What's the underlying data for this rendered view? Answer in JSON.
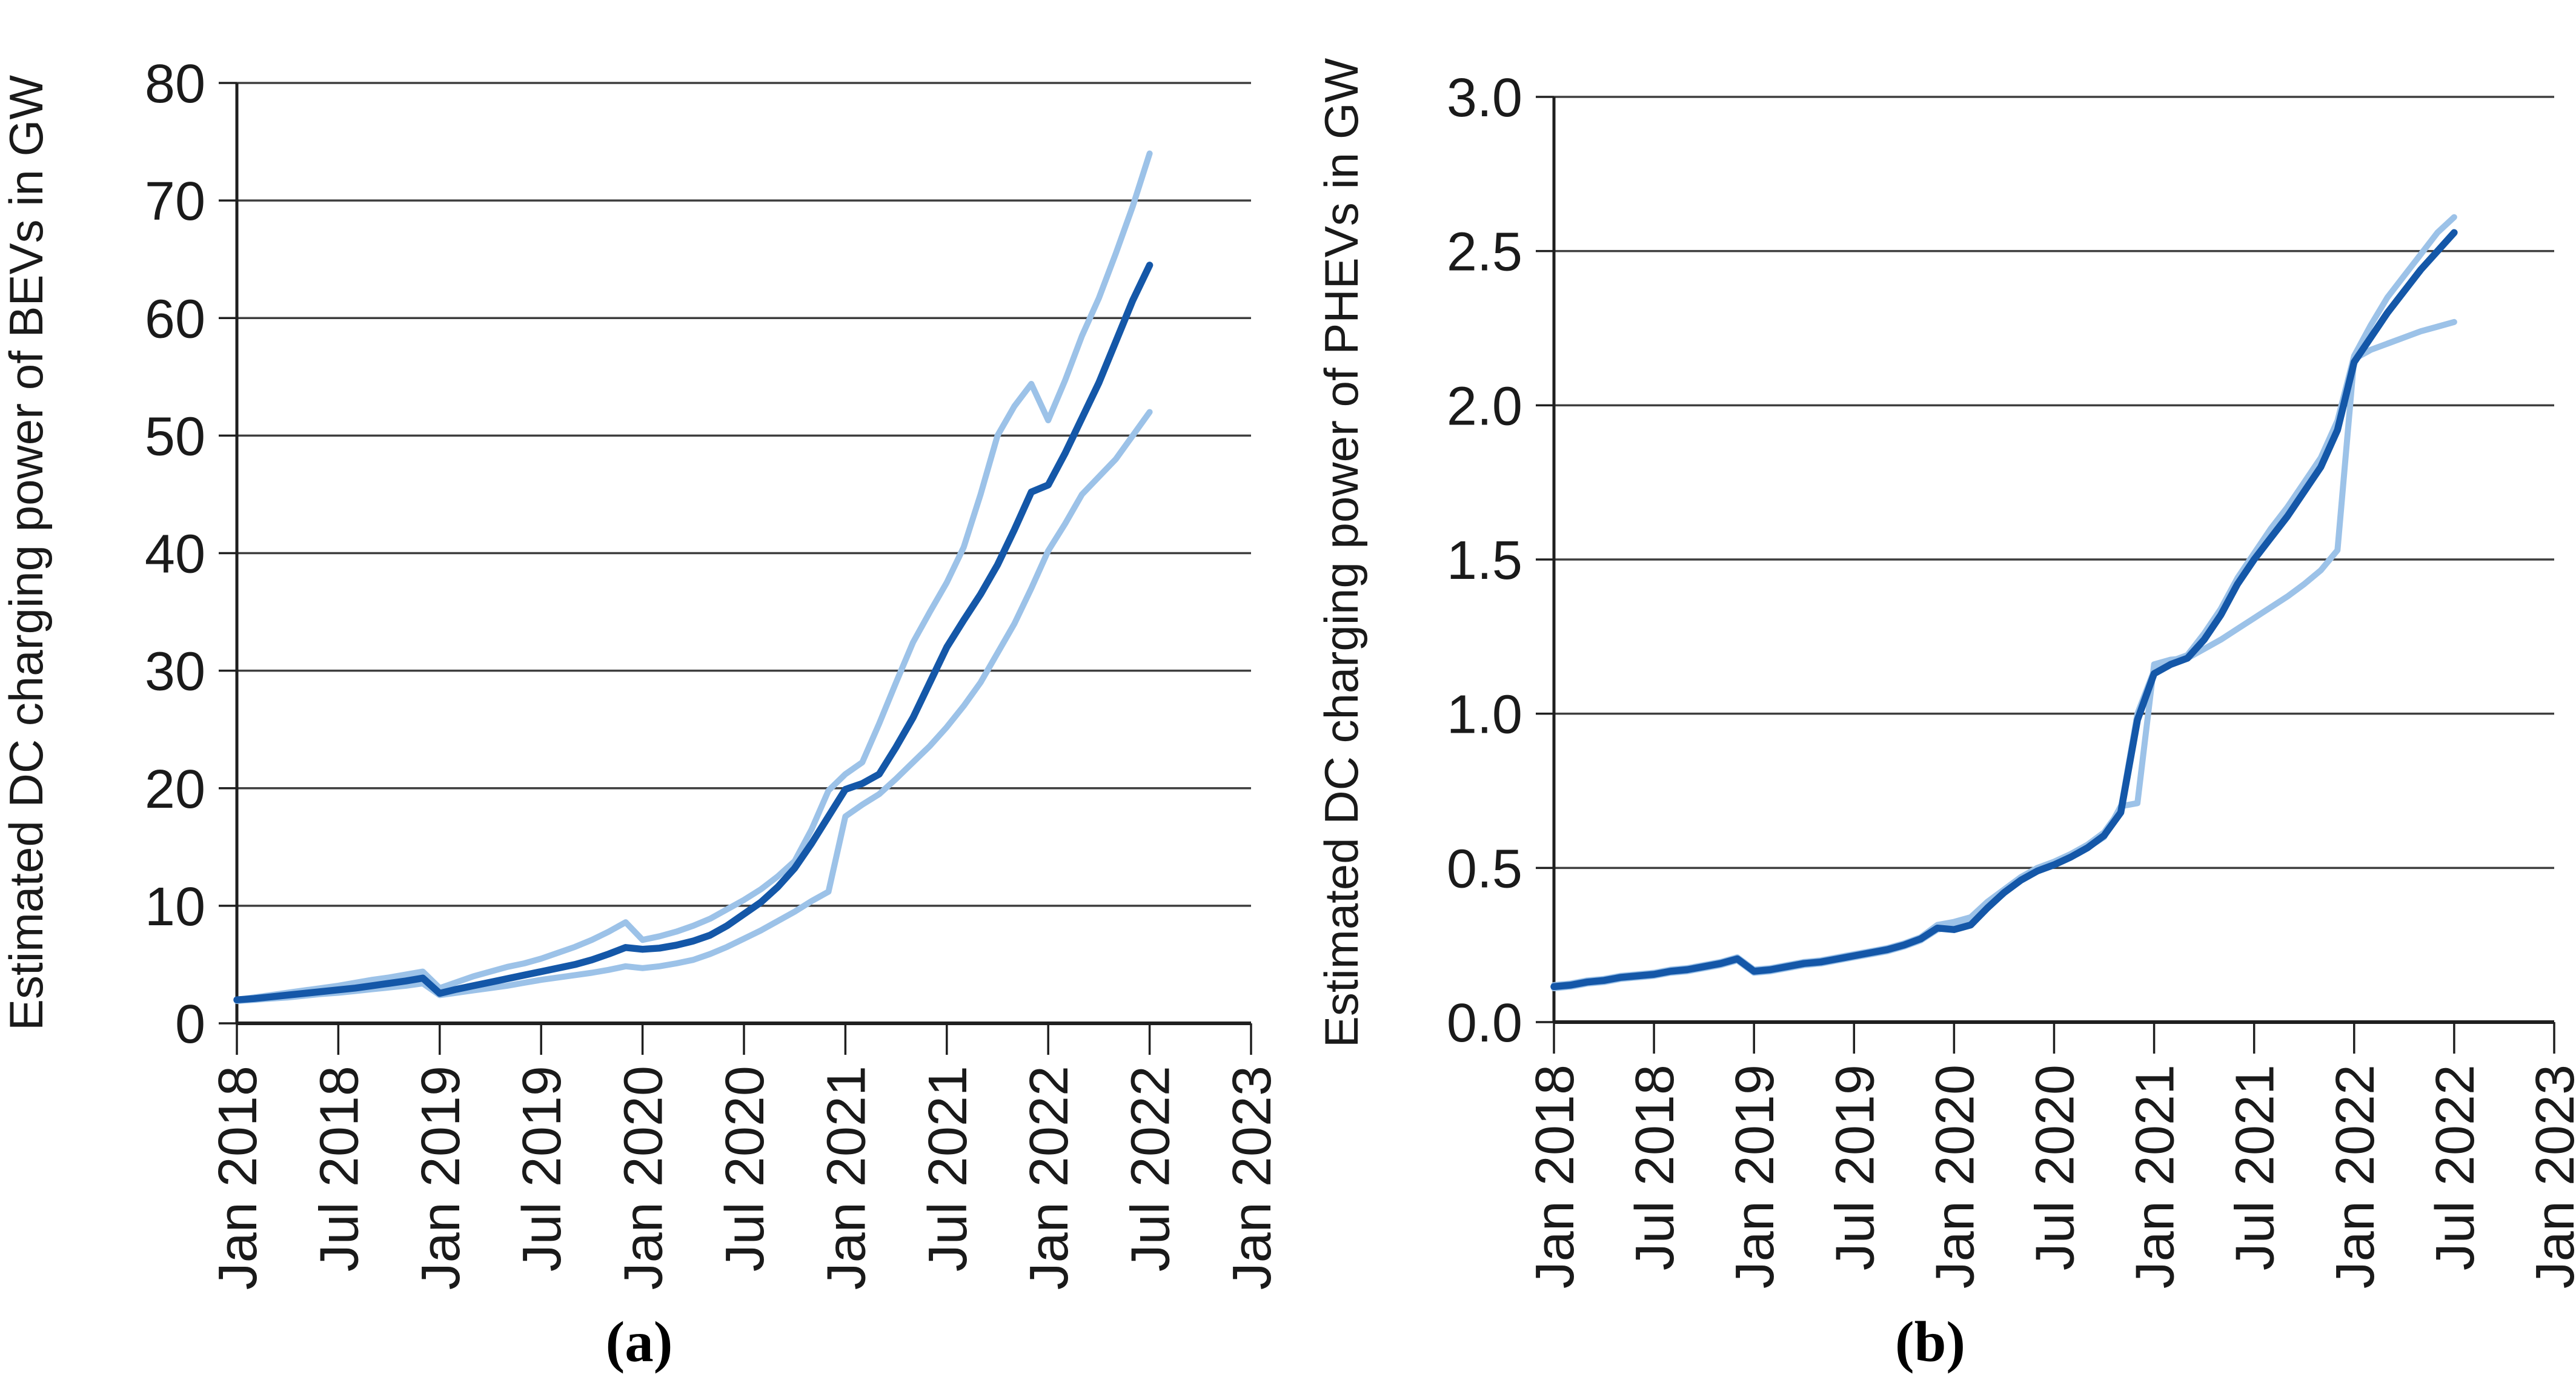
{
  "figure": {
    "background": "#ffffff",
    "description": "Two-panel line chart of estimated DC charging power, each panel with a central estimate (dark blue) and upper/lower bound lines (light blue)"
  },
  "colors": {
    "central_line": "#1457A8",
    "bound_line": "#9CC2E8",
    "gridline": "#3E3E3E",
    "axis": "#1F1F1F",
    "text": "#1A1A1A"
  },
  "chart_data": [
    {
      "type": "line",
      "panel_label": "(a)",
      "ylabel": "Estimated DC charging power of BEVs in GW",
      "xlabel": "",
      "ylim": [
        0,
        80
      ],
      "yticks": [
        0,
        10,
        20,
        30,
        40,
        50,
        60,
        70,
        80
      ],
      "ytick_decimals": 0,
      "grid": true,
      "legend_position": "none",
      "x_axis_months_span": 60,
      "months_per_tick": 6,
      "x_tick_labels": [
        "Jan 2018",
        "Jul 2018",
        "Jan 2019",
        "Jul 2019",
        "Jan 2020",
        "Jul 2020",
        "Jan 2021",
        "Jul 2021",
        "Jan 2022",
        "Jul 2022",
        "Jan 2023"
      ],
      "x_monthly_from": "Jan 2018",
      "x_monthly_to": "Jul 2022",
      "series": [
        {
          "name": "upper bound",
          "role": "bound",
          "values": [
            2.0,
            2.2,
            2.4,
            2.6,
            2.8,
            3.0,
            3.2,
            3.45,
            3.7,
            3.9,
            4.15,
            4.4,
            3.0,
            3.5,
            4.0,
            4.4,
            4.8,
            5.1,
            5.5,
            6.0,
            6.5,
            7.1,
            7.8,
            8.6,
            7.1,
            7.4,
            7.8,
            8.3,
            8.9,
            9.7,
            10.5,
            11.4,
            12.5,
            13.8,
            16.5,
            19.8,
            21.2,
            22.2,
            25.5,
            29.0,
            32.4,
            35.0,
            37.5,
            40.5,
            45.0,
            50.0,
            52.5,
            54.4,
            51.3,
            54.7,
            58.5,
            61.7,
            65.5,
            69.5,
            74.0
          ]
        },
        {
          "name": "central estimate",
          "role": "central",
          "values": [
            2.0,
            2.1,
            2.25,
            2.4,
            2.55,
            2.7,
            2.85,
            3.0,
            3.2,
            3.4,
            3.6,
            3.85,
            2.55,
            2.9,
            3.2,
            3.5,
            3.8,
            4.1,
            4.4,
            4.7,
            5.0,
            5.4,
            5.9,
            6.45,
            6.3,
            6.4,
            6.65,
            7.0,
            7.5,
            8.3,
            9.3,
            10.3,
            11.6,
            13.2,
            15.3,
            17.6,
            19.9,
            20.4,
            21.2,
            23.5,
            26.0,
            29.0,
            32.0,
            34.3,
            36.5,
            39.0,
            42.0,
            45.2,
            45.8,
            48.5,
            51.5,
            54.5,
            58.0,
            61.5,
            64.5
          ]
        },
        {
          "name": "lower bound",
          "role": "bound",
          "values": [
            1.9,
            2.0,
            2.1,
            2.2,
            2.35,
            2.5,
            2.6,
            2.75,
            2.9,
            3.05,
            3.2,
            3.4,
            2.4,
            2.6,
            2.8,
            3.0,
            3.2,
            3.45,
            3.7,
            3.9,
            4.1,
            4.3,
            4.55,
            4.85,
            4.7,
            4.85,
            5.1,
            5.4,
            5.9,
            6.5,
            7.2,
            7.9,
            8.7,
            9.5,
            10.4,
            11.2,
            17.6,
            18.6,
            19.5,
            20.8,
            22.2,
            23.6,
            25.2,
            27.0,
            29.0,
            31.5,
            34.0,
            37.0,
            40.2,
            42.5,
            45.0,
            46.5,
            48.0,
            50.0,
            52.0
          ]
        }
      ]
    },
    {
      "type": "line",
      "panel_label": "(b)",
      "ylabel": "Estimated DC charging power of PHEVs in GW",
      "xlabel": "",
      "ylim": [
        0,
        3.0
      ],
      "yticks": [
        0.0,
        0.5,
        1.0,
        1.5,
        2.0,
        2.5,
        3.0
      ],
      "ytick_decimals": 1,
      "grid": true,
      "legend_position": "none",
      "x_axis_months_span": 60,
      "months_per_tick": 6,
      "x_tick_labels": [
        "Jan 2018",
        "Jul 2018",
        "Jan 2019",
        "Jul 2019",
        "Jan 2020",
        "Jul 2020",
        "Jan 2021",
        "Jul 2021",
        "Jan 2022",
        "Jul 2022",
        "Jan 2023"
      ],
      "x_monthly_from": "Jan 2018",
      "x_monthly_to": "Jul 2022",
      "series": [
        {
          "name": "upper bound",
          "role": "bound",
          "values": [
            0.12,
            0.125,
            0.135,
            0.14,
            0.15,
            0.155,
            0.16,
            0.17,
            0.175,
            0.185,
            0.195,
            0.21,
            0.17,
            0.175,
            0.185,
            0.195,
            0.2,
            0.21,
            0.22,
            0.23,
            0.24,
            0.255,
            0.275,
            0.315,
            0.325,
            0.34,
            0.39,
            0.43,
            0.47,
            0.5,
            0.52,
            0.545,
            0.575,
            0.615,
            0.69,
            1.0,
            1.14,
            1.17,
            1.19,
            1.26,
            1.34,
            1.44,
            1.52,
            1.6,
            1.67,
            1.75,
            1.83,
            1.95,
            2.16,
            2.26,
            2.35,
            2.42,
            2.49,
            2.56,
            2.61
          ]
        },
        {
          "name": "central estimate",
          "role": "central",
          "values": [
            0.115,
            0.12,
            0.13,
            0.135,
            0.145,
            0.15,
            0.155,
            0.165,
            0.17,
            0.18,
            0.19,
            0.205,
            0.165,
            0.17,
            0.18,
            0.19,
            0.195,
            0.205,
            0.215,
            0.225,
            0.235,
            0.25,
            0.27,
            0.305,
            0.3,
            0.315,
            0.37,
            0.42,
            0.46,
            0.49,
            0.51,
            0.535,
            0.565,
            0.605,
            0.68,
            0.98,
            1.13,
            1.16,
            1.18,
            1.24,
            1.32,
            1.42,
            1.5,
            1.57,
            1.64,
            1.72,
            1.8,
            1.92,
            2.14,
            2.22,
            2.3,
            2.37,
            2.44,
            2.5,
            2.56
          ]
        },
        {
          "name": "lower bound",
          "role": "bound",
          "values": [
            0.11,
            0.115,
            0.125,
            0.13,
            0.14,
            0.145,
            0.15,
            0.16,
            0.165,
            0.175,
            0.185,
            0.2,
            0.16,
            0.165,
            0.175,
            0.185,
            0.19,
            0.2,
            0.21,
            0.22,
            0.23,
            0.245,
            0.265,
            0.3,
            0.31,
            0.325,
            0.375,
            0.42,
            0.46,
            0.49,
            0.51,
            0.535,
            0.565,
            0.6,
            0.7,
            0.71,
            1.16,
            1.175,
            1.18,
            1.21,
            1.24,
            1.275,
            1.31,
            1.345,
            1.38,
            1.42,
            1.465,
            1.53,
            2.15,
            2.18,
            2.2,
            2.22,
            2.24,
            2.255,
            2.27
          ]
        }
      ]
    }
  ]
}
